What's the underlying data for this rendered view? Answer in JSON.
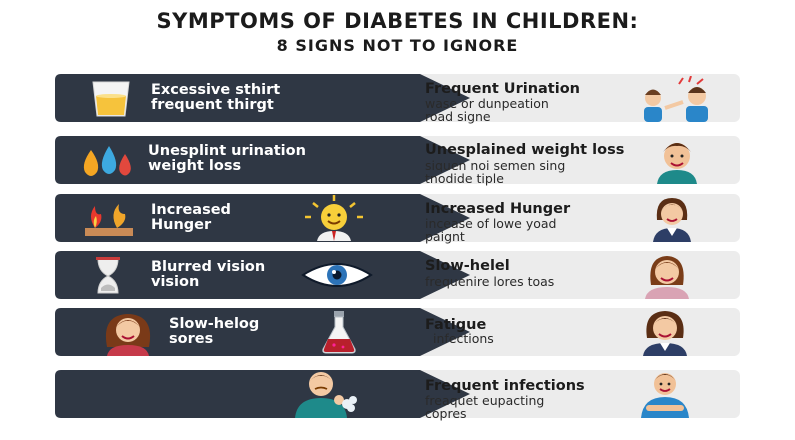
{
  "title": {
    "line1": "SYMPTOMS OF DIABETES IN CHILDREN:",
    "line2": "8 SIGNS NOT TO IGNORE"
  },
  "rows": [
    {
      "left_lines": [
        "Excessive sthirt",
        "frequent thirgt"
      ],
      "right_title": "Frequent Urination",
      "right_lines": [
        "wase or dunpeation",
        "road signe"
      ],
      "left_icon": "juice-glass-icon",
      "right_icon": "two-children-icon"
    },
    {
      "left_lines": [
        "Unesplint urination",
        "weight loss"
      ],
      "right_title": "Unesplained weight loss",
      "right_lines": [
        "siquen noi semen sing",
        "tnodide tiple"
      ],
      "left_icon": "water-drops-icon",
      "right_icon": "boy-avatar-icon"
    },
    {
      "left_lines": [
        "Increased",
        "Hunger"
      ],
      "right_title": "Increased Hunger",
      "right_lines": [
        "incease of lowe yoad",
        "paignt"
      ],
      "left_icon": "flame-tray-icon",
      "mid_icon": "sun-face-icon",
      "right_icon": "woman-avatar-icon"
    },
    {
      "left_lines": [
        "Blurred vision",
        "vision"
      ],
      "right_title": "Slow-helel",
      "right_lines": [
        "frequenire lores toas"
      ],
      "left_icon": "hourglass-icon",
      "mid_icon": "eye-icon",
      "right_icon": "girl-avatar-icon"
    },
    {
      "left_lines": [
        "Slow-helog",
        "sores"
      ],
      "right_title": "Fatigue",
      "right_lines": [
        "infections"
      ],
      "left_icon": "girl-avatar-icon",
      "mid_icon": "flask-icon",
      "right_icon": "woman-avatar-icon"
    },
    {
      "left_lines": [],
      "right_title": "Frequent infections",
      "right_lines": [
        "freaquet eupacting",
        "copres"
      ],
      "left_icon": "sick-child-icon",
      "right_icon": "boy-arms-crossed-icon"
    }
  ],
  "colors": {
    "dark_band": "#2f3744",
    "light_band": "#ececec",
    "text_dark": "#1c1c1c"
  }
}
